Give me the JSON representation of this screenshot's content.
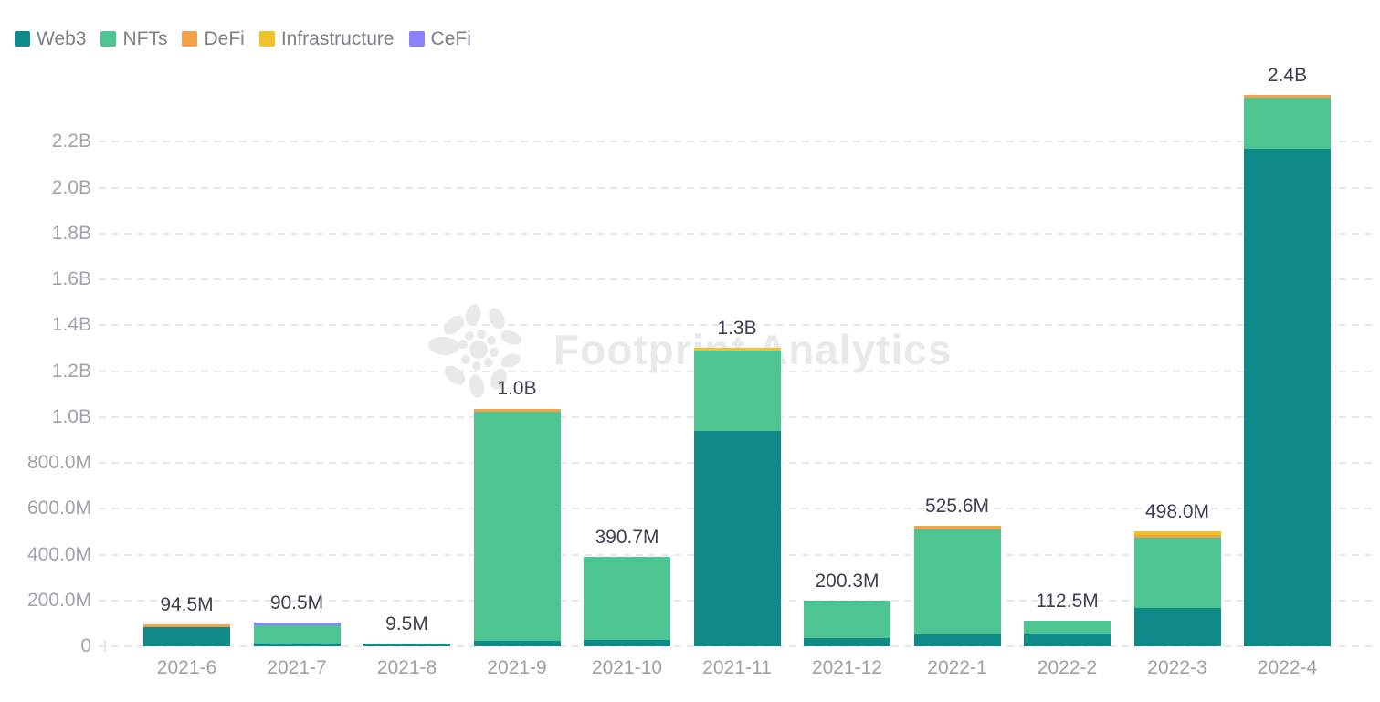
{
  "legend": {
    "position": "top-left",
    "items": [
      {
        "label": "Web3",
        "color": "#0f8a88"
      },
      {
        "label": "NFTs",
        "color": "#4ec492"
      },
      {
        "label": "DeFi",
        "color": "#f5a04b"
      },
      {
        "label": "Infrastructure",
        "color": "#f0c229"
      },
      {
        "label": "CeFi",
        "color": "#8b80f9"
      }
    ]
  },
  "watermark": {
    "text": "Footprint Analytics",
    "logo": "footprint-flower-logo",
    "color": "#e9e9ec"
  },
  "chart_data": {
    "type": "bar",
    "stacked": true,
    "unit": "USD",
    "value_unit_of_series": "millions",
    "categories": [
      "2021-6",
      "2021-7",
      "2021-8",
      "2021-9",
      "2021-10",
      "2021-11",
      "2021-12",
      "2022-1",
      "2022-2",
      "2022-3",
      "2022-4"
    ],
    "series": [
      {
        "name": "Web3",
        "color": "#0f8a88",
        "values": [
          85,
          5,
          9.5,
          25,
          28,
          940,
          38,
          50,
          55,
          168,
          2168
        ]
      },
      {
        "name": "NFTs",
        "color": "#4ec492",
        "values": [
          0,
          78,
          0,
          1000,
          362.7,
          350,
          162.3,
          460,
          57.5,
          304,
          224
        ]
      },
      {
        "name": "DeFi",
        "color": "#f5a04b",
        "values": [
          9.5,
          0,
          0,
          9,
          0,
          0,
          0,
          15.6,
          0,
          9,
          8
        ]
      },
      {
        "name": "Infrastructure",
        "color": "#f0c229",
        "values": [
          0,
          0,
          0,
          0,
          0,
          10,
          0,
          0,
          0,
          17,
          0
        ]
      },
      {
        "name": "CeFi",
        "color": "#8b80f9",
        "values": [
          0,
          7.5,
          0,
          0,
          0,
          0,
          0,
          0,
          0,
          0,
          0
        ]
      }
    ],
    "total_labels": [
      "94.5M",
      "90.5M",
      "9.5M",
      "1.0B",
      "390.7M",
      "1.3B",
      "200.3M",
      "525.6M",
      "112.5M",
      "498.0M",
      "2.4B"
    ],
    "y_ticks": [
      {
        "label": "0",
        "value": 0
      },
      {
        "label": "200.0M",
        "value": 200
      },
      {
        "label": "400.0M",
        "value": 400
      },
      {
        "label": "600.0M",
        "value": 600
      },
      {
        "label": "800.0M",
        "value": 800
      },
      {
        "label": "1.0B",
        "value": 1000
      },
      {
        "label": "1.2B",
        "value": 1200
      },
      {
        "label": "1.4B",
        "value": 1400
      },
      {
        "label": "1.6B",
        "value": 1600
      },
      {
        "label": "1.8B",
        "value": 1800
      },
      {
        "label": "2.0B",
        "value": 2000
      },
      {
        "label": "2.2B",
        "value": 2200
      }
    ],
    "ylim": [
      0,
      2400
    ],
    "grid": "dashed-horizontal",
    "legend_position": "top-left",
    "title": "",
    "xlabel": "",
    "ylabel": ""
  }
}
